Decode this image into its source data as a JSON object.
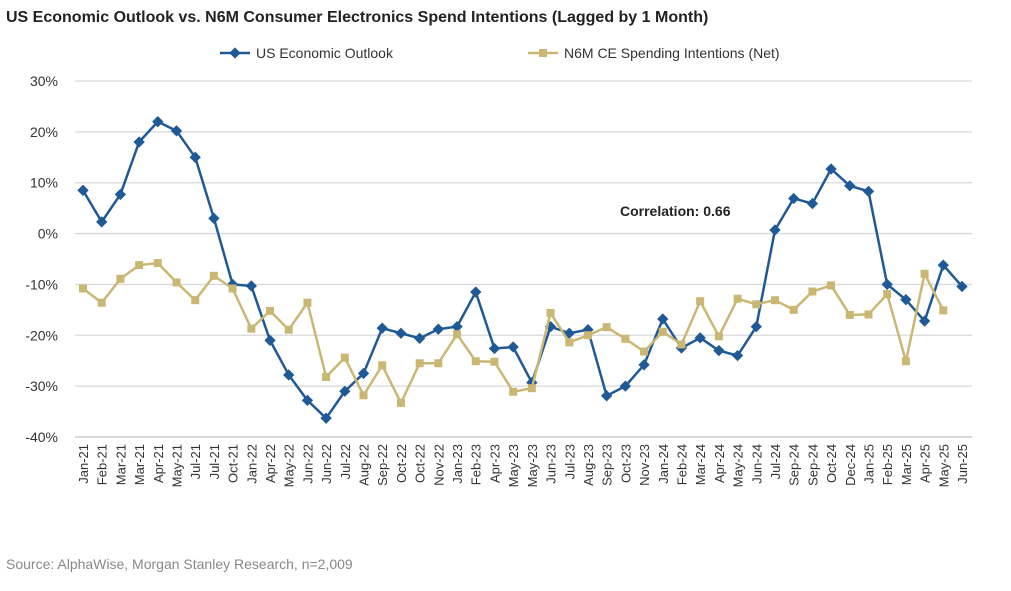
{
  "chart_data": {
    "type": "line",
    "title": "US Economic Outlook vs. N6M Consumer Electronics Spend Intentions (Lagged by 1 Month)",
    "source": "Source: AlphaWise, Morgan Stanley Research, n=2,009",
    "annotation": "Correlation: 0.66",
    "ylim": [
      -40,
      30
    ],
    "yticks": [
      "30%",
      "20%",
      "10%",
      "0%",
      "-10%",
      "-20%",
      "-30%",
      "-40%"
    ],
    "ytick_values": [
      30,
      20,
      10,
      0,
      -10,
      -20,
      -30,
      -40
    ],
    "grid": true,
    "legend_placement": "top",
    "categories": [
      "Jan-21",
      "Feb-21",
      "Mar-21",
      "Mar-21",
      "Apr-21",
      "May-21",
      "Jul-21",
      "Jul-21",
      "Oct-21",
      "Jan-22",
      "Apr-22",
      "May-22",
      "Jun-22",
      "Jun-22",
      "Jul-22",
      "Aug-22",
      "Sep-22",
      "Oct-22",
      "Oct-22",
      "Nov-22",
      "Jan-23",
      "Feb-23",
      "Apr-23",
      "May-23",
      "May-23",
      "Jun-23",
      "Jul-23",
      "Aug-23",
      "Sep-23",
      "Oct-23",
      "Nov-23",
      "Jan-24",
      "Feb-24",
      "Mar-24",
      "Apr-24",
      "May-24",
      "Jun-24",
      "Jul-24",
      "Sep-24",
      "Sep-24",
      "Oct-24",
      "Dec-24",
      "Jan-25",
      "Feb-25",
      "Mar-25",
      "Apr-25",
      "May-25",
      "Jun-25"
    ],
    "series": [
      {
        "name": "US Economic Outlook",
        "color": "#1f5a96",
        "marker": "diamond",
        "values": [
          8.5,
          2.3,
          7.7,
          18,
          22,
          20.2,
          15,
          3,
          -10,
          -10.3,
          -21,
          -27.8,
          -32.8,
          -36.3,
          -31,
          -27.5,
          -18.6,
          -19.6,
          -20.6,
          -18.8,
          -18.3,
          -11.5,
          -22.6,
          -22.3,
          -29.3,
          -18.3,
          -19.6,
          -18.9,
          -31.9,
          -30,
          -25.8,
          -16.8,
          -22.5,
          -20.5,
          -23,
          -24,
          -18.3,
          0.7,
          6.9,
          5.9,
          12.7,
          9.4,
          8.3,
          -10,
          -13,
          -17.2,
          -6.2,
          -10.4
        ]
      },
      {
        "name": "N6M CE Spending Intentions (Net)",
        "color": "#cbb774",
        "marker": "square",
        "values": [
          -10.8,
          -13.6,
          -8.9,
          -6.2,
          -5.8,
          -9.6,
          -13.1,
          -8.3,
          -10.8,
          -18.7,
          -15.2,
          -18.9,
          -13.6,
          -28.2,
          -24.4,
          -31.8,
          -25.9,
          -33.3,
          -25.5,
          -25.5,
          -19.8,
          -25.1,
          -25.2,
          -31.1,
          -30.4,
          -15.6,
          -21.4,
          -20,
          -18.4,
          -20.7,
          -23.2,
          -19.3,
          -21.8,
          -13.3,
          -20.2,
          -12.8,
          -13.9,
          -13.1,
          -15,
          -11.4,
          -10.2,
          -16,
          -15.9,
          -11.9,
          -25.1,
          -7.9,
          -15.1,
          null
        ]
      }
    ]
  }
}
